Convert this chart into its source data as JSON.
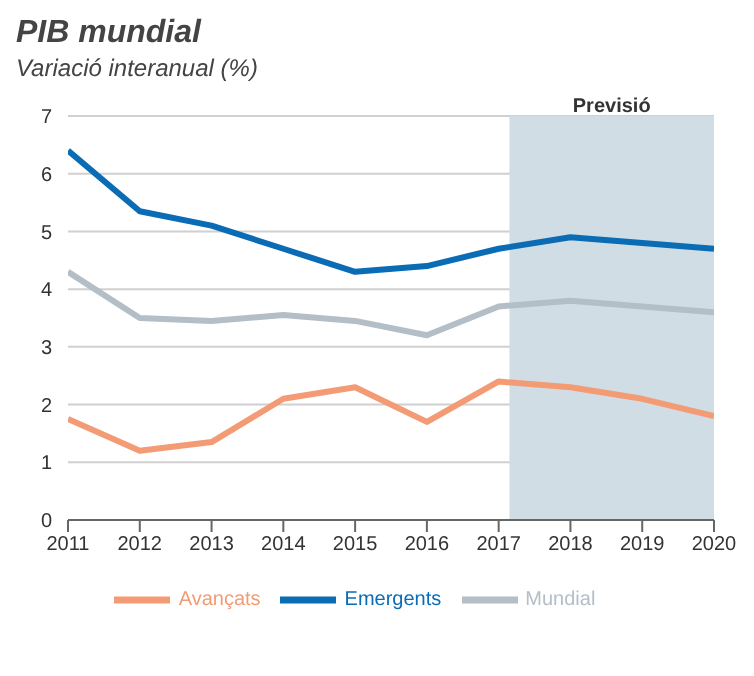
{
  "chart_data": {
    "type": "line",
    "title": "PIB mundial",
    "subtitle": "Variació interanual (%)",
    "x": [
      2011,
      2012,
      2013,
      2014,
      2015,
      2016,
      2017,
      2018,
      2019,
      2020
    ],
    "series": [
      {
        "name": "Mundial",
        "color": "#b3bec6",
        "values": [
          4.3,
          3.5,
          3.45,
          3.55,
          3.45,
          3.2,
          3.7,
          3.8,
          3.7,
          3.6
        ]
      },
      {
        "name": "Emergents",
        "color": "#0a6cb4",
        "values": [
          6.4,
          5.35,
          5.1,
          4.7,
          4.3,
          4.4,
          4.7,
          4.9,
          4.8,
          4.7
        ]
      },
      {
        "name": "Avançats",
        "color": "#f39b74",
        "values": [
          1.75,
          1.2,
          1.35,
          2.1,
          2.3,
          1.7,
          2.4,
          2.3,
          2.1,
          1.8
        ]
      }
    ],
    "xlim": [
      2011,
      2020
    ],
    "xticks": [
      2011,
      2012,
      2013,
      2014,
      2015,
      2016,
      2017,
      2018,
      2019,
      2020
    ],
    "ylim": [
      0,
      7
    ],
    "yticks": [
      0,
      1,
      2,
      3,
      4,
      5,
      6,
      7
    ],
    "bands": [
      {
        "axis": "x",
        "from": 2017.15,
        "to": 2020,
        "label": "Previsió",
        "color": "#d1dde5"
      }
    ],
    "grid": "y",
    "legend": "bottom",
    "marker": "none",
    "line_style": "solid"
  }
}
